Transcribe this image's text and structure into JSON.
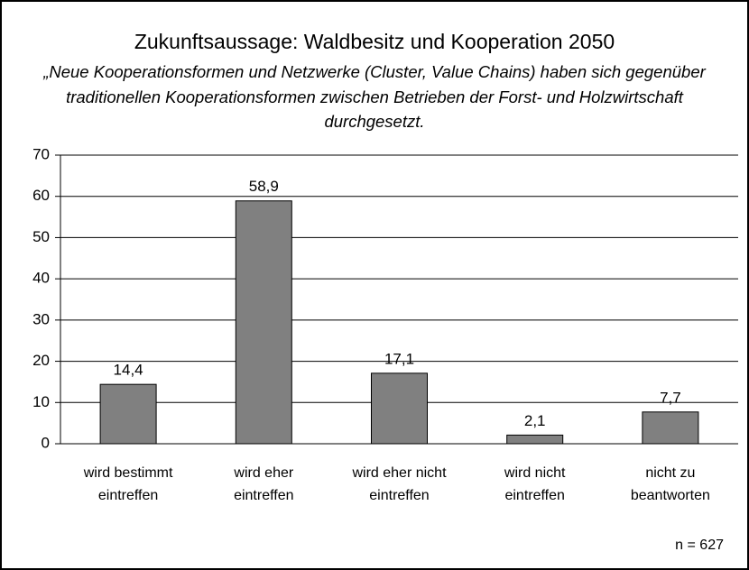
{
  "chart_data": {
    "type": "bar",
    "title": "Zukunftsaussage: Waldbesitz und Kooperation 2050",
    "subtitle": "„Neue Kooperationsformen und Netzwerke (Cluster, Value Chains) haben sich gegenüber traditionellen Kooperationsformen zwischen Betrieben der Forst- und Holzwirtschaft durchgesetzt.",
    "categories": [
      "wird bestimmt\neintreffen",
      "wird eher\neintreffen",
      "wird eher nicht\neintreffen",
      "wird nicht\neintreffen",
      "nicht zu\nbeantworten"
    ],
    "values": [
      14.4,
      58.9,
      17.1,
      2.1,
      7.7
    ],
    "value_labels": [
      "14,4",
      "58,9",
      "17,1",
      "2,1",
      "7,7"
    ],
    "color": "#808080",
    "ylim": [
      0,
      70
    ],
    "yticks": [
      0,
      10,
      20,
      30,
      40,
      50,
      60,
      70
    ],
    "grid": true,
    "annotation": "n = 627"
  }
}
